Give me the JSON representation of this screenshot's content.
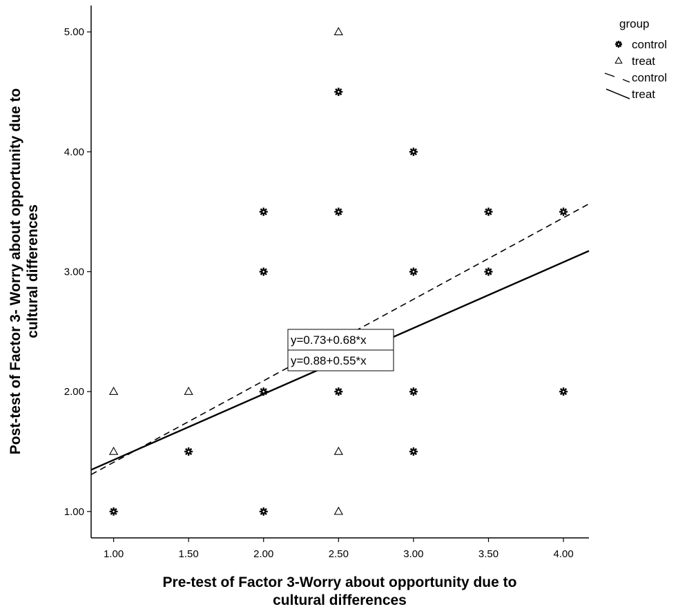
{
  "chart_data": {
    "type": "scatter",
    "xlabel_lines": [
      "Pre-test of Factor 3-Worry about opportunity due to",
      "cultural differences"
    ],
    "ylabel_lines": [
      "Post-test of Factor 3- Worry about opportunity due to",
      "cultural differences"
    ],
    "xlim": [
      0.85,
      4.17
    ],
    "ylim": [
      0.78,
      5.22
    ],
    "x_ticks": [
      "1.00",
      "1.50",
      "2.00",
      "2.50",
      "3.00",
      "3.50",
      "4.00"
    ],
    "y_ticks": [
      "1.00",
      "2.00",
      "3.00",
      "4.00",
      "5.00"
    ],
    "legend": {
      "title": "group",
      "position": "top-right",
      "items": [
        {
          "label": "control",
          "kind": "marker-star"
        },
        {
          "label": "treat",
          "kind": "marker-triangle"
        },
        {
          "label": "control",
          "kind": "line-dashed"
        },
        {
          "label": "treat",
          "kind": "line-solid"
        }
      ]
    },
    "series": [
      {
        "name": "control",
        "marker": "star",
        "points": [
          {
            "x": 1.0,
            "y": 1.0
          },
          {
            "x": 1.5,
            "y": 1.5
          },
          {
            "x": 2.0,
            "y": 1.0
          },
          {
            "x": 2.0,
            "y": 2.0
          },
          {
            "x": 2.0,
            "y": 3.0
          },
          {
            "x": 2.0,
            "y": 3.5
          },
          {
            "x": 2.5,
            "y": 2.0
          },
          {
            "x": 2.5,
            "y": 3.5
          },
          {
            "x": 2.5,
            "y": 4.5
          },
          {
            "x": 3.0,
            "y": 1.5
          },
          {
            "x": 3.0,
            "y": 2.0
          },
          {
            "x": 3.0,
            "y": 3.0
          },
          {
            "x": 3.0,
            "y": 4.0
          },
          {
            "x": 3.5,
            "y": 3.0
          },
          {
            "x": 3.5,
            "y": 3.5
          },
          {
            "x": 4.0,
            "y": 2.0
          },
          {
            "x": 4.0,
            "y": 3.5
          }
        ]
      },
      {
        "name": "treat",
        "marker": "triangle",
        "points": [
          {
            "x": 1.0,
            "y": 1.5
          },
          {
            "x": 1.0,
            "y": 2.0
          },
          {
            "x": 1.5,
            "y": 2.0
          },
          {
            "x": 2.5,
            "y": 1.0
          },
          {
            "x": 2.5,
            "y": 1.5
          },
          {
            "x": 2.5,
            "y": 5.0
          }
        ]
      }
    ],
    "fit_lines": [
      {
        "group": "control",
        "style": "dashed",
        "intercept": 0.73,
        "slope": 0.68,
        "equation": "y=0.73+0.68*x"
      },
      {
        "group": "treat",
        "style": "solid",
        "intercept": 0.88,
        "slope": 0.55,
        "equation": "y=0.88+0.55*x"
      }
    ],
    "grid": false
  }
}
